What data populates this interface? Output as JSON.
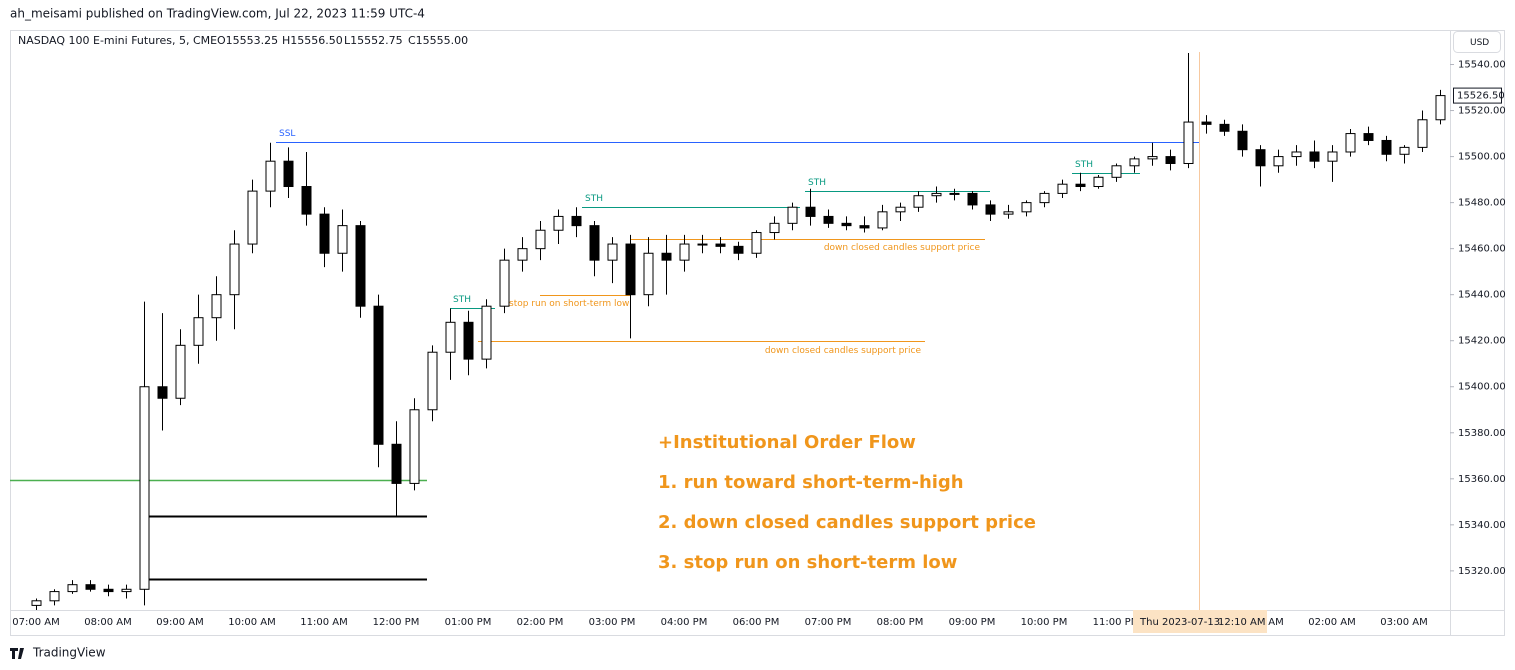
{
  "header": "ah_meisami published on TradingView.com, Jul 22, 2023 11:59 UTC-4",
  "chart_data": {
    "type": "candlestick",
    "title": "NASDAQ 100 E-mini Futures, 5, CME",
    "legend_ohlc": [
      "O15553.25",
      "H15556.50",
      "L15552.75",
      "C15555.00"
    ],
    "currency": "USD",
    "x": [
      "07:00 AM",
      "07:15 AM",
      "07:30 AM",
      "07:45 AM",
      "08:00 AM",
      "08:15 AM",
      "08:30 AM",
      "08:45 AM",
      "09:00 AM",
      "09:15 AM",
      "09:30 AM",
      "09:45 AM",
      "10:00 AM",
      "10:15 AM",
      "10:30 AM",
      "10:45 AM",
      "11:00 AM",
      "11:15 AM",
      "11:30 AM",
      "11:45 AM",
      "12:00 PM",
      "12:15 PM",
      "12:30 PM",
      "12:45 PM",
      "01:00 PM",
      "01:15 PM",
      "01:30 PM",
      "01:45 PM",
      "02:00 PM",
      "02:15 PM",
      "02:30 PM",
      "02:45 PM",
      "03:00 PM",
      "03:15 PM",
      "03:30 PM",
      "03:45 PM",
      "04:00 PM",
      "04:15 PM",
      "04:30 PM",
      "04:45 PM",
      "06:00 PM",
      "06:15 PM",
      "06:30 PM",
      "06:45 PM",
      "07:00 PM",
      "07:15 PM",
      "07:30 PM",
      "07:45 PM",
      "08:00 PM",
      "08:15 PM",
      "08:30 PM",
      "08:45 PM",
      "09:00 PM",
      "09:15 PM",
      "09:30 PM",
      "09:45 PM",
      "10:00 PM",
      "10:15 PM",
      "10:30 PM",
      "10:45 PM",
      "11:00 PM",
      "11:15 PM",
      "11:30 PM",
      "11:45 PM",
      "12:00 AM",
      "12:15 AM",
      "12:30 AM",
      "12:45 AM",
      "01:00 AM",
      "01:15 AM",
      "01:30 AM",
      "01:45 AM",
      "02:00 AM",
      "02:15 AM",
      "02:30 AM",
      "02:45 AM",
      "03:00 AM",
      "03:15 AM",
      "03:30 AM"
    ],
    "open": [
      15305,
      15307,
      15311,
      15314,
      15312,
      15311,
      15312,
      15400,
      15395,
      15418,
      15430,
      15440,
      15462,
      15485,
      15498,
      15487,
      15475,
      15458,
      15470,
      15435,
      15375,
      15358,
      15390,
      15415,
      15428,
      15412,
      15435,
      15455,
      15460,
      15468,
      15474,
      15470,
      15455,
      15462,
      15440,
      15458,
      15455,
      15462,
      15462,
      15461,
      15458,
      15467,
      15471,
      15478,
      15474,
      15471,
      15470,
      15469,
      15476,
      15478,
      15483,
      15484,
      15484,
      15479,
      15475,
      15476,
      15480,
      15484,
      15488,
      15487,
      15491,
      15496,
      15499,
      15500,
      15497,
      15515,
      15514,
      15511,
      15503,
      15496,
      15500,
      15502,
      15498,
      15502,
      15510,
      15507,
      15501,
      15504,
      15516
    ],
    "high": [
      15308,
      15312,
      15316,
      15316,
      15314,
      15314,
      15437,
      15432,
      15425,
      15440,
      15448,
      15468,
      15490,
      15506,
      15504,
      15502,
      15478,
      15477,
      15472,
      15440,
      15385,
      15395,
      15418,
      15434,
      15433,
      15438,
      15460,
      15465,
      15472,
      15477,
      15478,
      15472,
      15465,
      15466,
      15465,
      15466,
      15466,
      15466,
      15465,
      15463,
      15468,
      15474,
      15480,
      15486,
      15477,
      15474,
      15474,
      15479,
      15480,
      15485,
      15487,
      15486,
      15485,
      15481,
      15479,
      15481,
      15485,
      15490,
      15493,
      15492,
      15497,
      15500,
      15506,
      15503,
      15545,
      15518,
      15516,
      15514,
      15505,
      15503,
      15505,
      15507,
      15505,
      15512,
      15513,
      15509,
      15505,
      15520,
      15529
    ],
    "low": [
      15303,
      15305,
      15310,
      15311,
      15309,
      15308,
      15305,
      15381,
      15392,
      15410,
      15420,
      15425,
      15458,
      15478,
      15482,
      15470,
      15452,
      15450,
      15430,
      15365,
      15344,
      15355,
      15385,
      15403,
      15405,
      15408,
      15432,
      15450,
      15455,
      15462,
      15465,
      15448,
      15445,
      15421,
      15435,
      15440,
      15450,
      15458,
      15458,
      15455,
      15456,
      15464,
      15468,
      15470,
      15469,
      15468,
      15467,
      15468,
      15472,
      15476,
      15480,
      15481,
      15477,
      15472,
      15473,
      15474,
      15478,
      15482,
      15485,
      15486,
      15489,
      15493,
      15496,
      15494,
      15495,
      15510,
      15509,
      15500,
      15487,
      15493,
      15496,
      15495,
      15489,
      15500,
      15505,
      15498,
      15497,
      15502,
      15514
    ],
    "close": [
      15307,
      15311,
      15314,
      15312,
      15311,
      15312,
      15400,
      15395,
      15418,
      15430,
      15440,
      15462,
      15485,
      15498,
      15487,
      15475,
      15458,
      15470,
      15435,
      15375,
      15358,
      15390,
      15415,
      15428,
      15412,
      15435,
      15455,
      15460,
      15468,
      15474,
      15470,
      15455,
      15462,
      15440,
      15458,
      15455,
      15462,
      15462,
      15461,
      15458,
      15467,
      15471,
      15478,
      15474,
      15471,
      15470,
      15469,
      15476,
      15478,
      15483,
      15484,
      15484,
      15479,
      15475,
      15476,
      15480,
      15484,
      15488,
      15487,
      15491,
      15496,
      15499,
      15500,
      15497,
      15515,
      15514,
      15511,
      15503,
      15496,
      15500,
      15502,
      15498,
      15502,
      15510,
      15507,
      15501,
      15504,
      15516,
      15526.5
    ],
    "colors": {
      "up": "#ffffff",
      "down": "#000000",
      "wick": "#000000"
    },
    "ylim": [
      15303,
      15555
    ],
    "yticks": [
      {
        "value": 15320,
        "label": "15320.00"
      },
      {
        "value": 15340,
        "label": "15340.00"
      },
      {
        "value": 15360,
        "label": "15360.00"
      },
      {
        "value": 15380,
        "label": "15380.00"
      },
      {
        "value": 15400,
        "label": "15400.00"
      },
      {
        "value": 15420,
        "label": "15420.00"
      },
      {
        "value": 15440,
        "label": "15440.00"
      },
      {
        "value": 15460,
        "label": "15460.00"
      },
      {
        "value": 15480,
        "label": "15480.00"
      },
      {
        "value": 15500,
        "label": "15500.00"
      },
      {
        "value": 15520,
        "label": "15520.00"
      },
      {
        "value": 15540,
        "label": "15540.00"
      }
    ],
    "last_price": {
      "value": 15526.5,
      "label": "15526.50"
    },
    "levels": [
      {
        "label": "SSL",
        "value": 15506.5,
        "color": "#2962ff"
      },
      {
        "label": "STH",
        "value": 15434,
        "color": "#089981"
      },
      {
        "label": "STH",
        "value": 15478,
        "color": "#089981"
      },
      {
        "label": "STH",
        "value": 15485,
        "color": "#089981"
      },
      {
        "label": "STH",
        "value": 15493,
        "color": "#089981"
      },
      {
        "label": "stop run on short-term low",
        "value": 15440,
        "color": "#f0961c"
      },
      {
        "label": "down closed candles support price",
        "value": 15420,
        "color": "#f0961c"
      },
      {
        "label": "down closed candles support price",
        "value": 15464,
        "color": "#f0961c"
      },
      {
        "value": 15359.6,
        "color": "#4caf50"
      },
      {
        "value": 15344,
        "color": "#000000"
      },
      {
        "value": 15316.5,
        "color": "#000000"
      }
    ],
    "crosshair": {
      "date": "Thu 2023-07-13",
      "time": "12:10 AM"
    },
    "notes": [
      "+Institutional Order Flow",
      "1. run toward short-term-high",
      "2. down closed candles support price",
      "3. stop run on short-term low"
    ],
    "notes_color": "#f0961c"
  },
  "footer": "TradingView"
}
